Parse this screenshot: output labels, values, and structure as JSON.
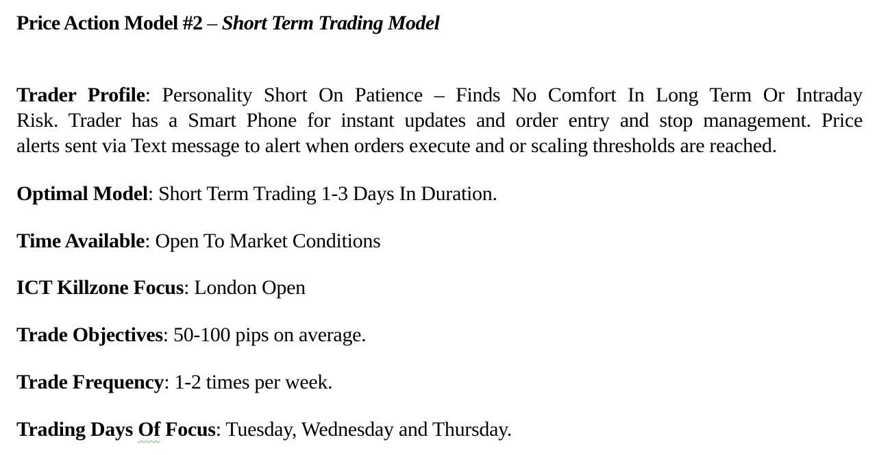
{
  "title": {
    "bold": "Price Action Model #2",
    "dash": " – ",
    "italic": "Short Term Trading Model"
  },
  "profile": {
    "label": "Trader Profile",
    "colon": ":",
    "line1": "  Personality  Short On Patience – Finds No Comfort In Long Term Or Intraday",
    "line2": "Risk.  Trader has a Smart Phone for instant updates and order entry and stop management.  Price",
    "line3": "alerts sent via Text message to alert when orders execute and or scaling thresholds are reached."
  },
  "fields": {
    "optimal_model": {
      "label": "Optimal Model",
      "colon": ":",
      "value": "  Short Term Trading 1-3 Days In Duration."
    },
    "time_available": {
      "label": "Time Available",
      "colon": ":",
      "value": "  Open To Market Conditions"
    },
    "killzone": {
      "label": "ICT Killzone  Focus",
      "colon": ":",
      "value": "  London Open"
    },
    "objectives": {
      "label": "Trade Objectives",
      "colon": ":",
      "value": " 50-100 pips on average."
    },
    "frequency": {
      "label": "Trade Frequency",
      "colon": ":",
      "value": "  1-2 times per week."
    },
    "days": {
      "label_a": "Trading Days ",
      "label_b": "Of",
      "label_c": " Focus",
      "colon": ":",
      "value": " Tuesday, Wednesday and Thursday."
    }
  }
}
